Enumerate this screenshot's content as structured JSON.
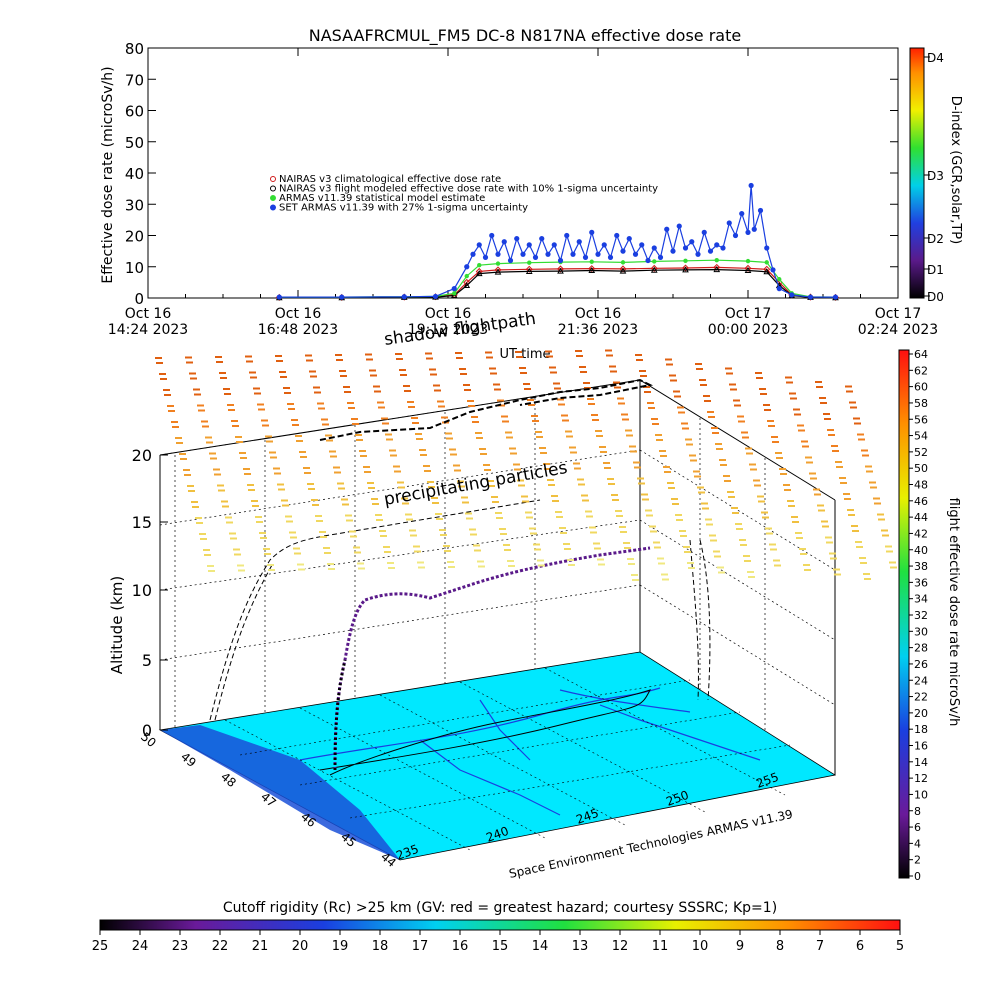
{
  "chart_data": [
    {
      "type": "line",
      "title": "NASAAFRCMUL_FM5 DC-8   N817NA effective dose rate",
      "ylabel": "Effective dose rate (microSv/h)",
      "xlabel": "UT time",
      "ylim": [
        0,
        80
      ],
      "y_ticks": [
        0,
        10,
        20,
        30,
        40,
        50,
        60,
        70,
        80
      ],
      "x_ticks": [
        {
          "line1": "Oct 16",
          "line2": "14:24 2023",
          "h": 14.4
        },
        {
          "line1": "Oct 16",
          "line2": "16:48 2023",
          "h": 16.8
        },
        {
          "line1": "Oct 16",
          "line2": "19:12 2023",
          "h": 19.2
        },
        {
          "line1": "Oct 16",
          "line2": "21:36 2023",
          "h": 21.6
        },
        {
          "line1": "Oct 17",
          "line2": "00:00 2023",
          "h": 24.0
        },
        {
          "line1": "Oct 17",
          "line2": "02:24 2023",
          "h": 26.4
        }
      ],
      "xlim_hours": [
        14.4,
        26.4
      ],
      "legend": [
        {
          "label": "NAIRAS v3 climatological effective dose rate",
          "color": "#d01a1a",
          "marker": "diamond"
        },
        {
          "label": "NAIRAS v3 flight modeled effective dose rate with 10% 1-sigma uncertainty",
          "color": "#000000",
          "marker": "triangle"
        },
        {
          "label": "ARMAS v11.39 statistical model estimate",
          "color": "#33dd33",
          "marker": "asterisk"
        },
        {
          "label": "SET ARMAS v11.39 with 27% 1-sigma uncertainty",
          "color": "#1a3fe0",
          "marker": "circle"
        }
      ],
      "series": [
        {
          "name": "NAIRAS v3 climatological effective dose rate",
          "color": "#d01a1a",
          "points": [
            [
              16.5,
              0.2
            ],
            [
              17.5,
              0.2
            ],
            [
              18.5,
              0.3
            ],
            [
              19.0,
              0.4
            ],
            [
              19.3,
              1
            ],
            [
              19.5,
              5
            ],
            [
              19.7,
              8.5
            ],
            [
              20.0,
              9
            ],
            [
              20.5,
              9.2
            ],
            [
              21.0,
              9.3
            ],
            [
              21.5,
              9.4
            ],
            [
              22.0,
              9.3
            ],
            [
              22.5,
              9.5
            ],
            [
              23.0,
              9.6
            ],
            [
              23.5,
              9.8
            ],
            [
              24.0,
              9.5
            ],
            [
              24.3,
              9.2
            ],
            [
              24.5,
              5
            ],
            [
              24.7,
              1
            ],
            [
              25.0,
              0.3
            ],
            [
              25.4,
              0.2
            ]
          ]
        },
        {
          "name": "NAIRAS v3 flight modeled effective dose rate with 10% 1-sigma uncertainty",
          "color": "#000000",
          "points": [
            [
              16.5,
              0.1
            ],
            [
              17.5,
              0.1
            ],
            [
              18.5,
              0.2
            ],
            [
              19.0,
              0.3
            ],
            [
              19.3,
              0.8
            ],
            [
              19.5,
              4
            ],
            [
              19.7,
              7.8
            ],
            [
              20.0,
              8.3
            ],
            [
              20.5,
              8.5
            ],
            [
              21.0,
              8.6
            ],
            [
              21.5,
              8.8
            ],
            [
              22.0,
              8.6
            ],
            [
              22.5,
              8.9
            ],
            [
              23.0,
              9.0
            ],
            [
              23.5,
              9.1
            ],
            [
              24.0,
              8.8
            ],
            [
              24.3,
              8.4
            ],
            [
              24.5,
              4
            ],
            [
              24.7,
              0.8
            ],
            [
              25.0,
              0.2
            ],
            [
              25.4,
              0.1
            ]
          ]
        },
        {
          "name": "ARMAS v11.39 statistical model estimate",
          "color": "#33dd33",
          "points": [
            [
              16.5,
              0.3
            ],
            [
              17.5,
              0.3
            ],
            [
              18.5,
              0.4
            ],
            [
              19.0,
              0.5
            ],
            [
              19.3,
              1.5
            ],
            [
              19.5,
              7
            ],
            [
              19.7,
              10.5
            ],
            [
              20.0,
              11
            ],
            [
              20.5,
              11.3
            ],
            [
              21.0,
              11.5
            ],
            [
              21.5,
              11.6
            ],
            [
              22.0,
              11.4
            ],
            [
              22.5,
              11.7
            ],
            [
              23.0,
              11.9
            ],
            [
              23.5,
              12.1
            ],
            [
              24.0,
              11.8
            ],
            [
              24.3,
              11.4
            ],
            [
              24.5,
              6
            ],
            [
              24.7,
              1.5
            ],
            [
              25.0,
              0.4
            ],
            [
              25.4,
              0.3
            ]
          ]
        },
        {
          "name": "SET ARMAS v11.39 with 27% 1-sigma uncertainty",
          "color": "#1a3fe0",
          "points": [
            [
              16.5,
              0.3
            ],
            [
              17.5,
              0.3
            ],
            [
              18.5,
              0.4
            ],
            [
              19.0,
              0.5
            ],
            [
              19.3,
              3
            ],
            [
              19.5,
              10
            ],
            [
              19.6,
              14
            ],
            [
              19.7,
              17
            ],
            [
              19.8,
              13
            ],
            [
              19.9,
              20
            ],
            [
              20.0,
              14
            ],
            [
              20.1,
              18
            ],
            [
              20.2,
              12
            ],
            [
              20.3,
              19
            ],
            [
              20.4,
              14
            ],
            [
              20.5,
              17
            ],
            [
              20.6,
              13
            ],
            [
              20.7,
              19
            ],
            [
              20.8,
              14
            ],
            [
              20.9,
              17
            ],
            [
              21.0,
              12
            ],
            [
              21.1,
              20
            ],
            [
              21.2,
              14
            ],
            [
              21.3,
              18
            ],
            [
              21.4,
              13
            ],
            [
              21.5,
              21
            ],
            [
              21.6,
              14
            ],
            [
              21.7,
              17
            ],
            [
              21.8,
              13
            ],
            [
              21.9,
              20
            ],
            [
              22.0,
              15
            ],
            [
              22.1,
              19
            ],
            [
              22.2,
              14
            ],
            [
              22.3,
              17
            ],
            [
              22.4,
              12
            ],
            [
              22.5,
              16
            ],
            [
              22.6,
              13
            ],
            [
              22.7,
              22
            ],
            [
              22.8,
              15
            ],
            [
              22.9,
              23
            ],
            [
              23.0,
              16
            ],
            [
              23.1,
              18
            ],
            [
              23.2,
              14
            ],
            [
              23.3,
              21
            ],
            [
              23.4,
              15
            ],
            [
              23.5,
              17
            ],
            [
              23.6,
              16
            ],
            [
              23.7,
              24
            ],
            [
              23.8,
              20
            ],
            [
              23.9,
              27
            ],
            [
              24.0,
              21
            ],
            [
              24.05,
              36
            ],
            [
              24.1,
              22
            ],
            [
              24.2,
              28
            ],
            [
              24.3,
              16
            ],
            [
              24.4,
              9
            ],
            [
              24.5,
              3
            ],
            [
              24.7,
              1
            ],
            [
              25.0,
              0.3
            ],
            [
              25.4,
              0.3
            ]
          ]
        }
      ],
      "colorbar": {
        "label": "D-index (GCR,solar,TP)",
        "ticks": [
          "D0",
          "D1",
          "D2",
          "D3",
          "D4"
        ]
      }
    },
    {
      "type": "scatter",
      "zlabel": "Altitude (km)",
      "z_ticks": [
        0,
        5,
        10,
        15,
        20
      ],
      "lat_ticks": [
        50,
        49,
        48,
        47,
        46,
        45,
        44
      ],
      "lon_ticks": [
        235,
        240,
        245,
        250,
        255
      ],
      "annotations": [
        "shadow flightpath",
        "precipitating particles",
        "Space Environment Technologies ARMAS v11.39"
      ],
      "colorbar": {
        "label": "flight effective dose rate microSv/h",
        "min": 0,
        "max": 64,
        "step": 2
      },
      "bottom_colorbar": {
        "label": "Cutoff rigidity (Rc) >25 km (GV: red = greatest hazard; courtesy SSSRC; Kp=1)",
        "ticks": [
          25,
          24,
          23,
          22,
          21,
          20,
          19,
          18,
          17,
          16,
          15,
          14,
          13,
          12,
          11,
          10,
          9,
          8,
          7,
          6,
          5
        ]
      }
    }
  ]
}
